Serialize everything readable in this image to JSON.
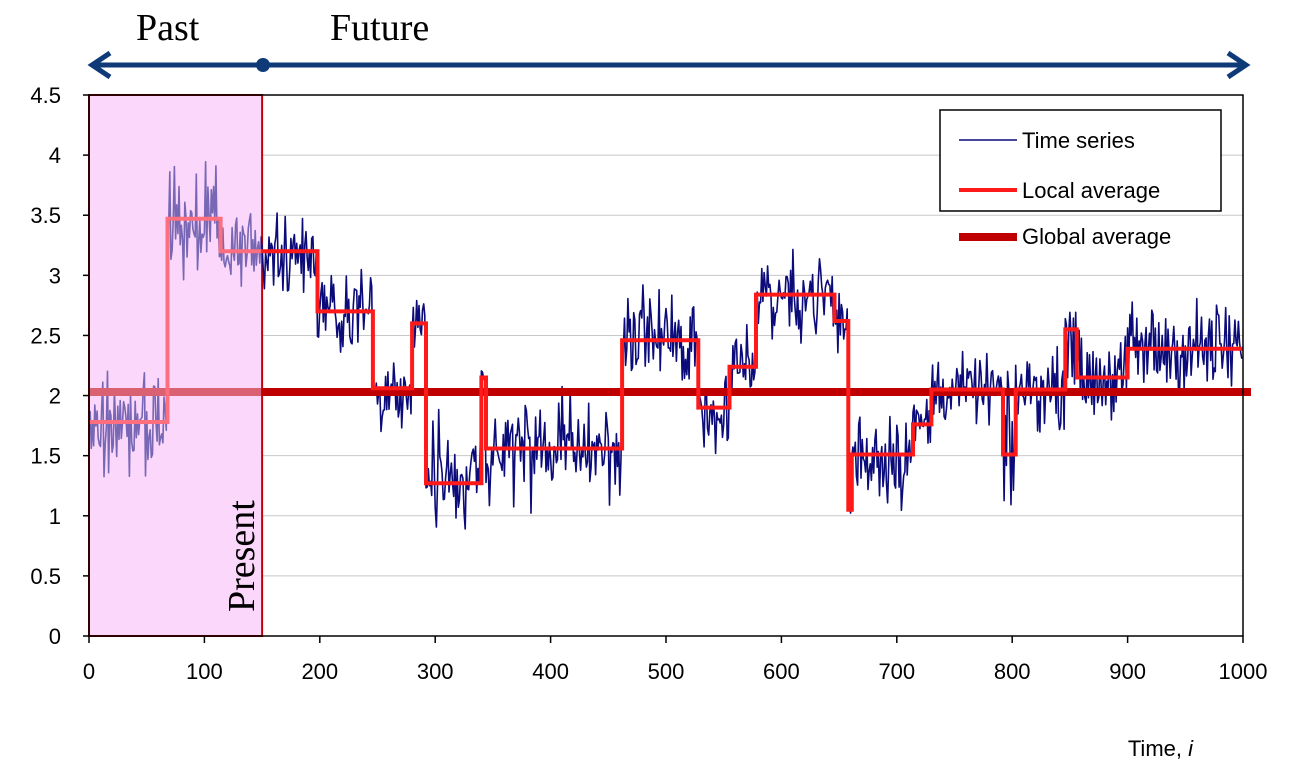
{
  "header": {
    "past_label": "Past",
    "future_label": "Future",
    "present_label": "Present"
  },
  "colors": {
    "time_series": "#0b0b7a",
    "local_average": "#ff1a1a",
    "global_average": "#c00000",
    "past_shade": "#fbd7fb",
    "past_border": "#c00000",
    "arrow": "#0f3a78"
  },
  "chart_data": {
    "type": "line",
    "xlabel": "Time, i",
    "xlabel_text": "Time, ",
    "xlabel_var": "i",
    "ylabel": "",
    "xlim": [
      0,
      1000
    ],
    "ylim": [
      0,
      4.5
    ],
    "xticks": [
      0,
      100,
      200,
      300,
      400,
      500,
      600,
      700,
      800,
      900,
      1000
    ],
    "yticks": [
      0,
      0.5,
      1,
      1.5,
      2,
      2.5,
      3,
      3.5,
      4,
      4.5
    ],
    "grid": "horizontal",
    "legend_position": "top-right",
    "present_time": 150,
    "series": [
      {
        "name": "Time series",
        "style": "thin line",
        "segments": [
          {
            "from": 0,
            "to": 68,
            "mean": 1.78,
            "noise": 0.2
          },
          {
            "from": 68,
            "to": 114,
            "mean": 3.47,
            "noise": 0.22
          },
          {
            "from": 114,
            "to": 198,
            "mean": 3.2,
            "noise": 0.17
          },
          {
            "from": 198,
            "to": 246,
            "mean": 2.7,
            "noise": 0.18
          },
          {
            "from": 246,
            "to": 280,
            "mean": 2.06,
            "noise": 0.14
          },
          {
            "from": 280,
            "to": 292,
            "mean": 2.6,
            "noise": 0.12
          },
          {
            "from": 292,
            "to": 340,
            "mean": 1.27,
            "noise": 0.22
          },
          {
            "from": 340,
            "to": 344,
            "mean": 2.15,
            "noise": 0.1
          },
          {
            "from": 344,
            "to": 462,
            "mean": 1.56,
            "noise": 0.2
          },
          {
            "from": 462,
            "to": 528,
            "mean": 2.46,
            "noise": 0.19
          },
          {
            "from": 528,
            "to": 555,
            "mean": 1.9,
            "noise": 0.15
          },
          {
            "from": 555,
            "to": 578,
            "mean": 2.24,
            "noise": 0.16
          },
          {
            "from": 578,
            "to": 646,
            "mean": 2.84,
            "noise": 0.18
          },
          {
            "from": 646,
            "to": 658,
            "mean": 2.62,
            "noise": 0.12
          },
          {
            "from": 658,
            "to": 661,
            "mean": 1.05,
            "noise": 0.1
          },
          {
            "from": 661,
            "to": 714,
            "mean": 1.51,
            "noise": 0.2
          },
          {
            "from": 714,
            "to": 730,
            "mean": 1.76,
            "noise": 0.14
          },
          {
            "from": 730,
            "to": 792,
            "mean": 2.05,
            "noise": 0.13
          },
          {
            "from": 792,
            "to": 803,
            "mean": 1.51,
            "noise": 0.25
          },
          {
            "from": 803,
            "to": 846,
            "mean": 2.05,
            "noise": 0.15
          },
          {
            "from": 846,
            "to": 856,
            "mean": 2.55,
            "noise": 0.2
          },
          {
            "from": 856,
            "to": 900,
            "mean": 2.15,
            "noise": 0.17
          },
          {
            "from": 900,
            "to": 1000,
            "mean": 2.39,
            "noise": 0.19
          }
        ]
      },
      {
        "name": "Local average",
        "style": "step",
        "steps": [
          {
            "from": 0,
            "to": 68,
            "value": 1.78
          },
          {
            "from": 68,
            "to": 114,
            "value": 3.47
          },
          {
            "from": 114,
            "to": 198,
            "value": 3.2
          },
          {
            "from": 198,
            "to": 246,
            "value": 2.7
          },
          {
            "from": 246,
            "to": 280,
            "value": 2.06
          },
          {
            "from": 280,
            "to": 292,
            "value": 2.6
          },
          {
            "from": 292,
            "to": 340,
            "value": 1.27
          },
          {
            "from": 340,
            "to": 344,
            "value": 2.15
          },
          {
            "from": 344,
            "to": 462,
            "value": 1.56
          },
          {
            "from": 462,
            "to": 528,
            "value": 2.46
          },
          {
            "from": 528,
            "to": 555,
            "value": 1.9
          },
          {
            "from": 555,
            "to": 578,
            "value": 2.24
          },
          {
            "from": 578,
            "to": 646,
            "value": 2.84
          },
          {
            "from": 646,
            "to": 658,
            "value": 2.62
          },
          {
            "from": 658,
            "to": 661,
            "value": 1.05
          },
          {
            "from": 661,
            "to": 714,
            "value": 1.51
          },
          {
            "from": 714,
            "to": 730,
            "value": 1.76
          },
          {
            "from": 730,
            "to": 792,
            "value": 2.05
          },
          {
            "from": 792,
            "to": 803,
            "value": 1.51
          },
          {
            "from": 803,
            "to": 846,
            "value": 2.05
          },
          {
            "from": 846,
            "to": 856,
            "value": 2.55
          },
          {
            "from": 856,
            "to": 900,
            "value": 2.15
          },
          {
            "from": 900,
            "to": 1000,
            "value": 2.39
          }
        ]
      },
      {
        "name": "Global average",
        "style": "thick line",
        "value": 2.03,
        "from": 0,
        "to": 1008
      }
    ]
  }
}
